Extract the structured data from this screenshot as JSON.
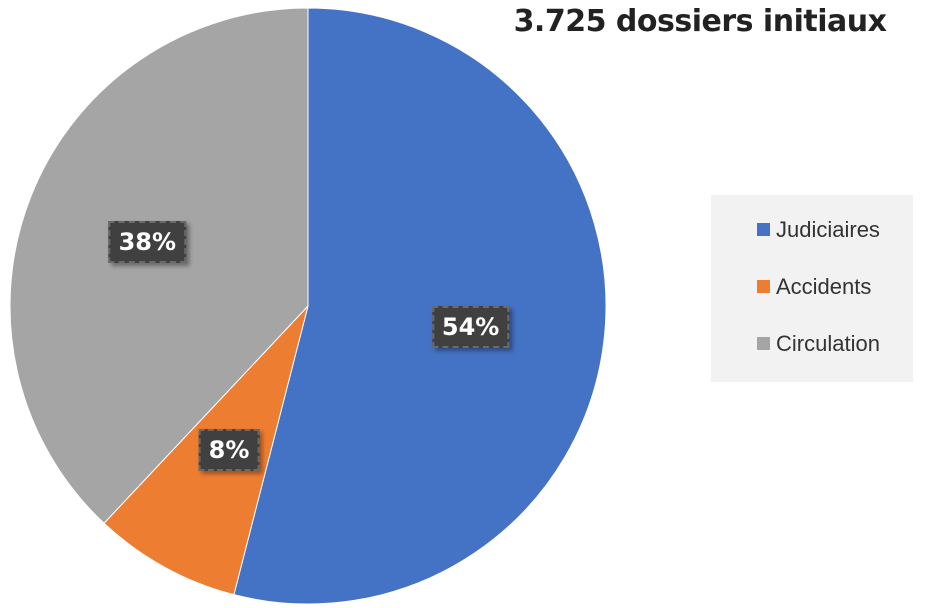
{
  "chart_data": {
    "type": "pie",
    "title": "3.725 dossiers initiaux",
    "slices": [
      {
        "name": "Judiciaires",
        "value": 54,
        "label": "54%",
        "color": "#4472C4"
      },
      {
        "name": "Accidents",
        "value": 8,
        "label": "8%",
        "color": "#ED7D31"
      },
      {
        "name": "Circulation",
        "value": 38,
        "label": "38%",
        "color": "#A5A5A5"
      }
    ],
    "start_angle_deg": 0,
    "direction": "clockwise",
    "legend_position": "right"
  }
}
